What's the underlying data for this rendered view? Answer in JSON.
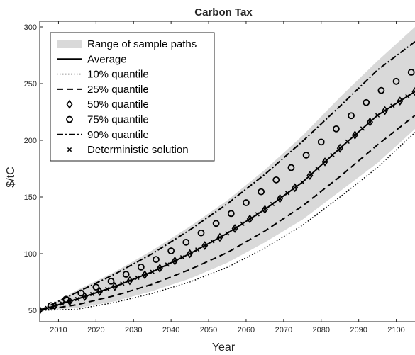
{
  "chart_data": {
    "type": "line",
    "title": "Carbon Tax",
    "xlabel": "Year",
    "ylabel": "$/tC",
    "xlim": [
      2005,
      2105
    ],
    "ylim": [
      40,
      305
    ],
    "xticks": [
      2010,
      2020,
      2030,
      2040,
      2050,
      2060,
      2070,
      2080,
      2090,
      2100
    ],
    "yticks": [
      50,
      100,
      150,
      200,
      250,
      300
    ],
    "grid": false,
    "legend_position": "top-left",
    "x": [
      2005,
      2015,
      2025,
      2035,
      2045,
      2055,
      2065,
      2075,
      2085,
      2095,
      2105
    ],
    "range": {
      "name": "Range of sample paths",
      "lower": [
        50,
        52,
        58,
        67,
        78,
        92,
        110,
        130,
        155,
        180,
        210
      ],
      "upper": [
        50,
        68,
        84,
        103,
        124,
        147,
        174,
        204,
        238,
        270,
        300
      ]
    },
    "series": [
      {
        "name": "Average",
        "style": "solid",
        "values": [
          50,
          60,
          71,
          84,
          100,
          118,
          139,
          163,
          193,
          222,
          243
        ]
      },
      {
        "name": "10% quantile",
        "style": "dotted",
        "values": [
          50,
          51,
          57,
          65,
          75,
          88,
          105,
          125,
          150,
          176,
          207
        ]
      },
      {
        "name": "25% quantile",
        "style": "dashed",
        "values": [
          50,
          55,
          63,
          73,
          86,
          101,
          120,
          142,
          168,
          196,
          222
        ]
      },
      {
        "name": "50% quantile",
        "style": "diamond",
        "values": [
          50,
          60,
          71,
          84,
          100,
          118,
          139,
          163,
          193,
          222,
          243
        ]
      },
      {
        "name": "75% quantile",
        "style": "circle",
        "values": [
          50,
          64,
          77,
          93,
          112,
          133,
          157,
          184,
          213,
          242,
          262
        ]
      },
      {
        "name": "90% quantile",
        "style": "dashdot",
        "values": [
          50,
          66,
          82,
          100,
          121,
          144,
          170,
          199,
          230,
          262,
          287
        ]
      },
      {
        "name": "Deterministic solution",
        "style": "cross",
        "values": [
          50,
          60,
          71,
          84,
          100,
          118,
          139,
          163,
          193,
          222,
          243
        ]
      }
    ]
  }
}
